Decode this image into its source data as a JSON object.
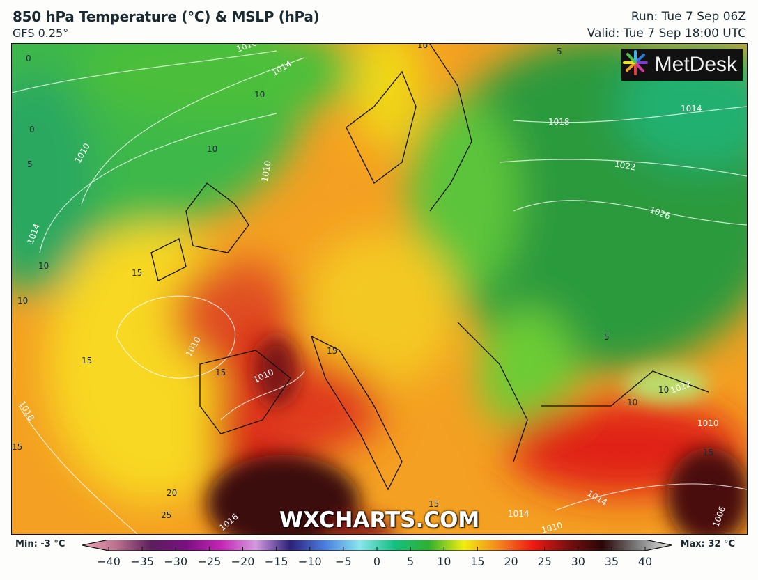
{
  "header": {
    "title": "850 hPa Temperature (°C) & MSLP (hPa)",
    "model": "GFS 0.25°",
    "run": "Run: Tue 7 Sep 06Z",
    "valid": "Valid: Tue 7 Sep 18:00 UTC"
  },
  "logo": "MetDesk",
  "watermark": "WXCHARTS.COM",
  "colorbar": {
    "min_label": "Min: -3 °C",
    "max_label": "Max: 32 °C",
    "ticks": [
      "−40",
      "−35",
      "−30",
      "−25",
      "−20",
      "−15",
      "−10",
      "−5",
      "0",
      "5",
      "10",
      "15",
      "20",
      "25",
      "30",
      "35",
      "40"
    ],
    "stops": [
      "#f4a6b8",
      "#b8708e",
      "#5c1e5c",
      "#7a1080",
      "#c426b4",
      "#d49ae0",
      "#2c2078",
      "#4a7ee0",
      "#8ae6ee",
      "#14c080",
      "#30b030",
      "#f2ee10",
      "#f2881e",
      "#ee1a12",
      "#7a1010",
      "#2a0606",
      "#7c7c7c",
      "#e6e6e6"
    ]
  },
  "map": {
    "isobar_labels": [
      "1010",
      "1014",
      "1018",
      "1014",
      "1010",
      "1014",
      "1022",
      "1026",
      "1010",
      "1018",
      "1010",
      "1022",
      "1010",
      "1014",
      "1010",
      "1006",
      "1016",
      "1014",
      "1010"
    ],
    "temperature_labels": [
      "0",
      "0",
      "5",
      "10",
      "10",
      "10",
      "10",
      "10",
      "15",
      "15",
      "15",
      "15",
      "15",
      "15",
      "20",
      "25",
      "5",
      "5",
      "10",
      "10",
      "15"
    ]
  }
}
